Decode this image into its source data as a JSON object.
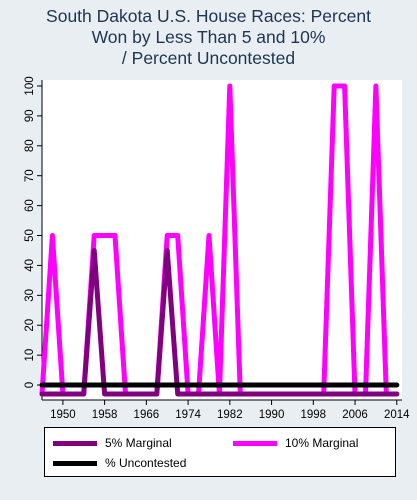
{
  "chart_data": {
    "type": "line",
    "title_lines": [
      "South Dakota U.S. House Races: Percent",
      "Won by Less Than 5 and 10%",
      "/ Percent Uncontested"
    ],
    "xlabel": "",
    "ylabel": "",
    "xlim": [
      1946,
      2015
    ],
    "ylim": [
      -5,
      102
    ],
    "x_ticks": [
      1950,
      1958,
      1966,
      1974,
      1982,
      1990,
      1998,
      2006,
      2014
    ],
    "y_ticks": [
      0,
      10,
      20,
      30,
      40,
      50,
      60,
      70,
      80,
      90,
      100
    ],
    "grid": false,
    "legend_position": "bottom",
    "series": [
      {
        "name": "5% Marginal",
        "color": "#800080",
        "points": [
          [
            1946,
            -3
          ],
          [
            1954,
            -3
          ],
          [
            1956,
            45
          ],
          [
            1958,
            -3
          ],
          [
            1968,
            -3
          ],
          [
            1970,
            45
          ],
          [
            1972,
            -3
          ],
          [
            1980,
            -3
          ],
          [
            1982,
            -3
          ],
          [
            1984,
            -3
          ],
          [
            2012,
            -3
          ],
          [
            2014,
            -3
          ]
        ]
      },
      {
        "name": "10% Marginal",
        "color": "#ff00ff",
        "points": [
          [
            1946,
            -3
          ],
          [
            1948,
            50
          ],
          [
            1950,
            -3
          ],
          [
            1954,
            -3
          ],
          [
            1956,
            50
          ],
          [
            1960,
            50
          ],
          [
            1962,
            -3
          ],
          [
            1968,
            -3
          ],
          [
            1970,
            50
          ],
          [
            1972,
            50
          ],
          [
            1974,
            -3
          ],
          [
            1976,
            -3
          ],
          [
            1978,
            50
          ],
          [
            1980,
            -3
          ],
          [
            1982,
            100
          ],
          [
            1984,
            -3
          ],
          [
            2000,
            -3
          ],
          [
            2002,
            100
          ],
          [
            2004,
            100
          ],
          [
            2006,
            -3
          ],
          [
            2008,
            -3
          ],
          [
            2010,
            100
          ],
          [
            2012,
            -3
          ],
          [
            2014,
            -3
          ]
        ]
      },
      {
        "name": "% Uncontested",
        "color": "#000000",
        "points": [
          [
            1946,
            0
          ],
          [
            2014,
            0
          ]
        ]
      }
    ]
  }
}
